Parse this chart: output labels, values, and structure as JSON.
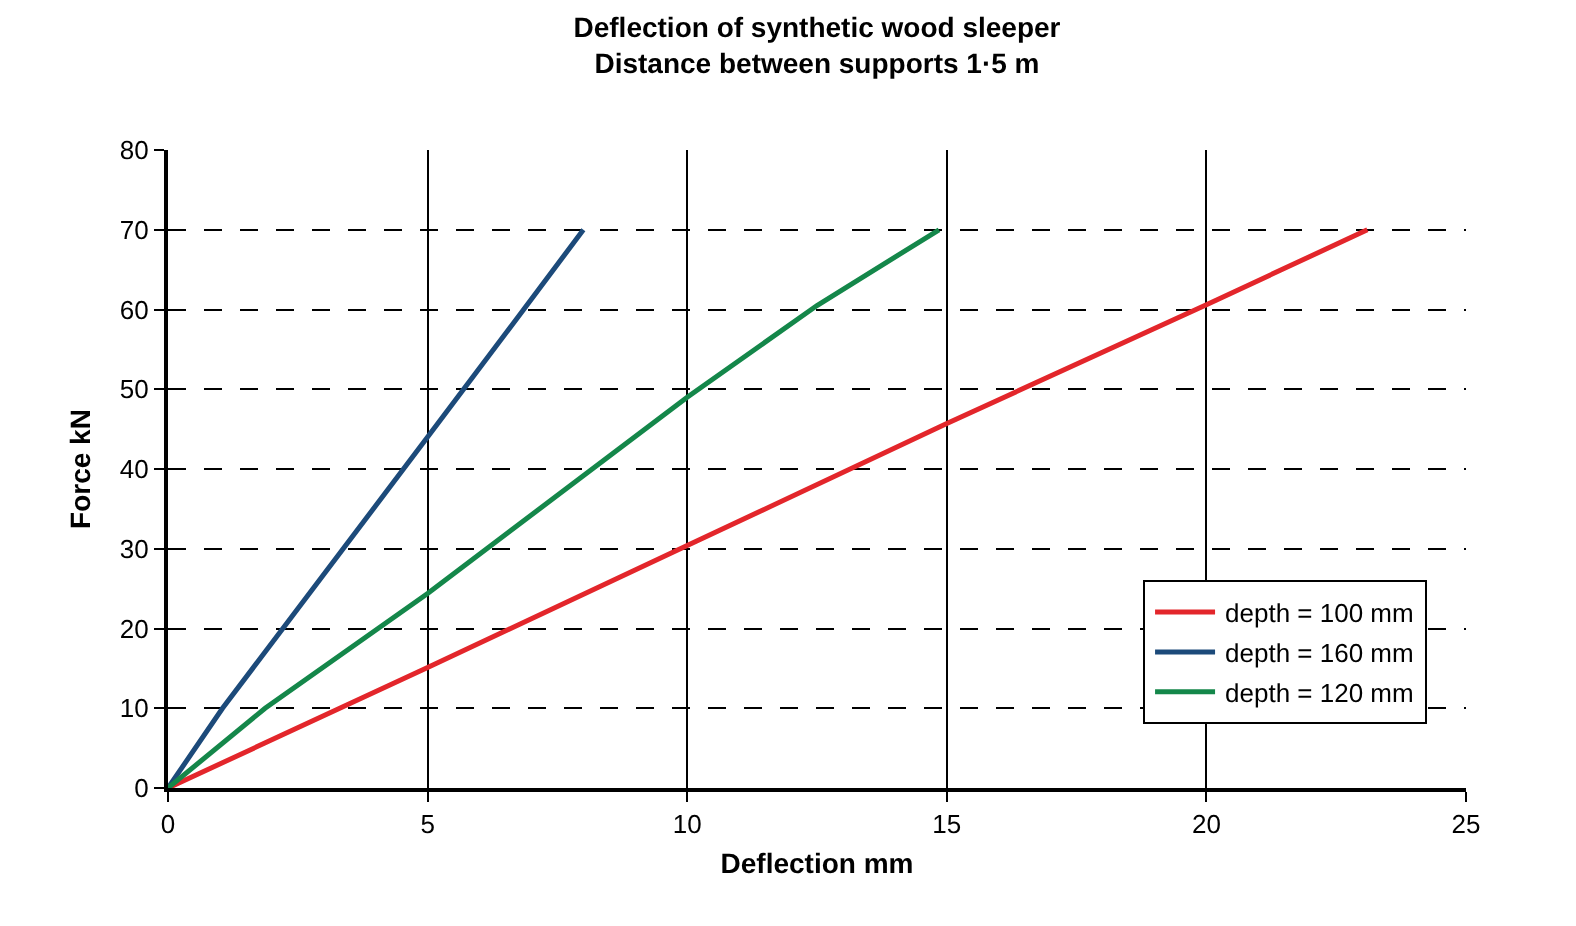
{
  "chart_data": {
    "type": "line",
    "title": "Deflection of synthetic wood sleeper\nDistance between supports 1·5 m",
    "xlabel": "Deflection mm",
    "ylabel": "Force kN",
    "xlim": [
      0,
      25
    ],
    "xticks": [
      0,
      5,
      10,
      15,
      20,
      25
    ],
    "ylim": [
      0,
      80
    ],
    "yticks": [
      0,
      10,
      20,
      30,
      40,
      50,
      60,
      70,
      80
    ],
    "grid": true,
    "legend": "bottom right",
    "marker": "none",
    "line_style": "solid",
    "series": [
      {
        "name": "depth = 100 mm",
        "color": "#e3262b",
        "x": [
          0,
          5,
          10,
          15,
          20,
          23.1
        ],
        "values": [
          0,
          15.1,
          30.4,
          45.7,
          60.6,
          70
        ]
      },
      {
        "name": "depth = 160 mm",
        "color": "#1c4a7a",
        "x": [
          0,
          1.05,
          5,
          6.85,
          8
        ],
        "values": [
          0,
          10,
          44,
          60,
          70
        ]
      },
      {
        "name": "depth = 120 mm",
        "color": "#14874a",
        "x": [
          0,
          1.87,
          5,
          10,
          12.5,
          14.85
        ],
        "values": [
          0,
          10,
          24.4,
          49,
          60.5,
          70
        ]
      }
    ]
  }
}
